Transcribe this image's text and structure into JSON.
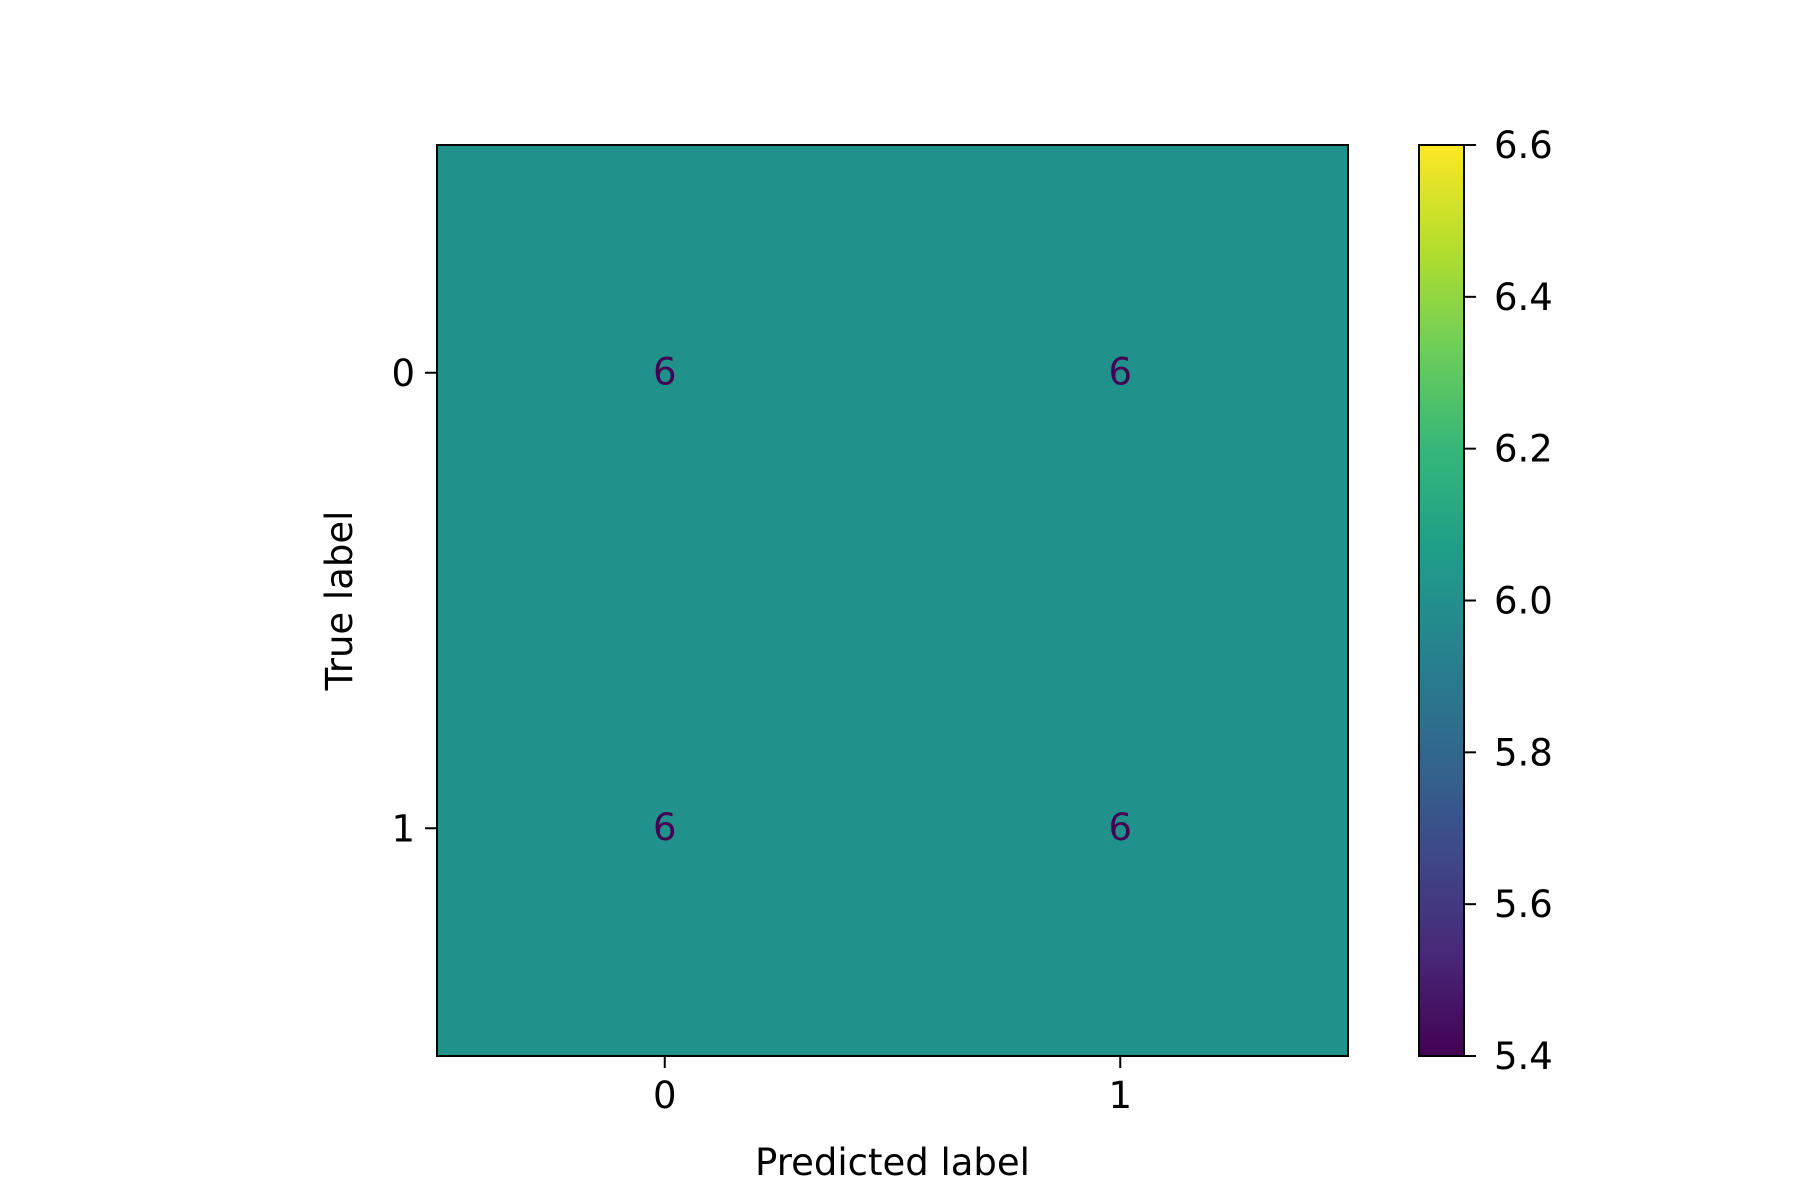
{
  "chart_data": {
    "type": "heatmap",
    "title": "",
    "xlabel": "Predicted label",
    "ylabel": "True label",
    "x_categories": [
      "0",
      "1"
    ],
    "y_categories": [
      "0",
      "1"
    ],
    "matrix": [
      [
        6,
        6
      ],
      [
        6,
        6
      ]
    ],
    "colormap": "viridis",
    "colorbar": {
      "range": [
        5.4,
        6.6
      ],
      "ticks": [
        "5.4",
        "5.6",
        "5.8",
        "6.0",
        "6.2",
        "6.4",
        "6.6"
      ]
    },
    "grid": false
  },
  "colors": {
    "cell_fill": "#21918c",
    "cell_text": "#440154",
    "viridis_stops": [
      "#440154",
      "#482878",
      "#3e4989",
      "#31688e",
      "#26828e",
      "#1f9e89",
      "#35b779",
      "#6ece58",
      "#b5de2b",
      "#fde725"
    ]
  }
}
